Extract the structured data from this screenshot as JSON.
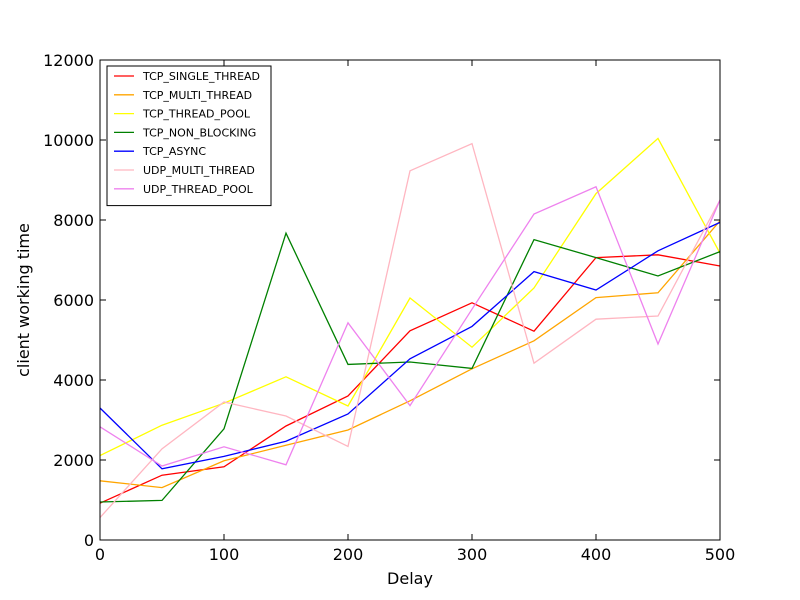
{
  "chart_data": {
    "type": "line",
    "title": "",
    "xlabel": "Delay",
    "ylabel": "client working time",
    "xlim": [
      0,
      500
    ],
    "ylim": [
      0,
      12000
    ],
    "x_ticks": [
      0,
      100,
      200,
      300,
      400,
      500
    ],
    "y_ticks": [
      0,
      2000,
      4000,
      6000,
      8000,
      10000,
      12000
    ],
    "grid": false,
    "legend_position": "top-left",
    "x": [
      0,
      50,
      100,
      150,
      200,
      250,
      300,
      350,
      400,
      450,
      500
    ],
    "series": [
      {
        "name": "TCP_SINGLE_THREAD",
        "color": "#ff0000",
        "values": [
          920,
          1620,
          1830,
          2850,
          3600,
          5230,
          5930,
          5220,
          7060,
          7130,
          6850
        ]
      },
      {
        "name": "TCP_MULTI_THREAD",
        "color": "#ffa500",
        "values": [
          1480,
          1310,
          1980,
          2370,
          2750,
          3480,
          4280,
          4980,
          6060,
          6180,
          7980
        ]
      },
      {
        "name": "TCP_THREAD_POOL",
        "color": "#ffff00",
        "values": [
          2110,
          2870,
          3420,
          4080,
          3350,
          6050,
          4820,
          6300,
          8660,
          10040,
          7170
        ]
      },
      {
        "name": "TCP_NON_BLOCKING",
        "color": "#008000",
        "values": [
          950,
          990,
          2780,
          7670,
          4390,
          4450,
          4290,
          7510,
          7060,
          6600,
          7210
        ]
      },
      {
        "name": "TCP_ASYNC",
        "color": "#0000ff",
        "values": [
          3300,
          1780,
          2090,
          2470,
          3150,
          4530,
          5340,
          6710,
          6250,
          7230,
          7940
        ]
      },
      {
        "name": "UDP_MULTI_THREAD",
        "color": "#ffb6c1",
        "values": [
          560,
          2280,
          3450,
          3100,
          2340,
          9230,
          9910,
          4420,
          5520,
          5600,
          8500
        ]
      },
      {
        "name": "UDP_THREAD_POOL",
        "color": "#ee82ee",
        "values": [
          2830,
          1850,
          2330,
          1880,
          5430,
          3360,
          5770,
          8150,
          8830,
          4900,
          8500
        ]
      }
    ]
  }
}
